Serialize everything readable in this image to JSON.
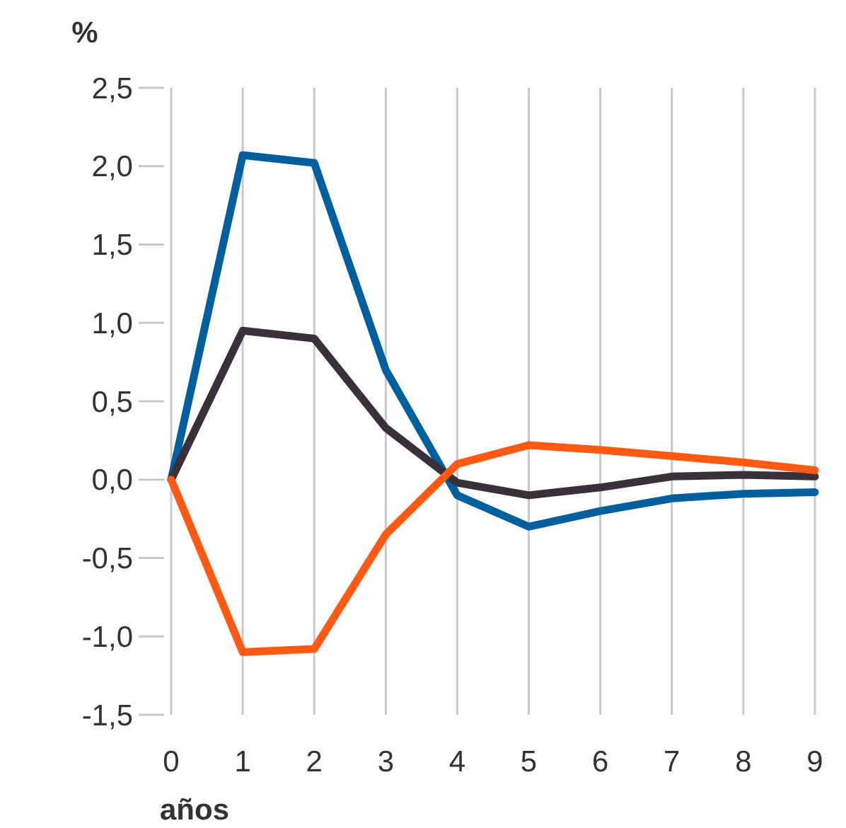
{
  "chart_data": {
    "type": "line",
    "ylabel": "%",
    "xlabel": "años",
    "x": [
      0,
      1,
      2,
      3,
      4,
      5,
      6,
      7,
      8,
      9
    ],
    "xlim": [
      0,
      9
    ],
    "xticks": [
      0,
      1,
      2,
      3,
      4,
      5,
      6,
      7,
      8,
      9
    ],
    "ylim": [
      -1.5,
      2.5
    ],
    "yticks": [
      {
        "value": -1.5,
        "label": "-1,5"
      },
      {
        "value": -1,
        "label": "-1,0"
      },
      {
        "value": -0.5,
        "label": "-0,5"
      },
      {
        "value": 0,
        "label": "0,0"
      },
      {
        "value": 0.5,
        "label": "0,5"
      },
      {
        "value": 1,
        "label": "1,0"
      },
      {
        "value": 1.5,
        "label": "1,5"
      },
      {
        "value": 2,
        "label": "2,0"
      },
      {
        "value": 2.5,
        "label": "2,5"
      }
    ],
    "grid": "x",
    "marker": "none",
    "line_style": "solid",
    "series": [
      {
        "color": "#00609e",
        "values": [
          0,
          2.07,
          2.02,
          0.7,
          -0.1,
          -0.3,
          -0.2,
          -0.12,
          -0.09,
          -0.08
        ]
      },
      {
        "color": "#3a2f3a",
        "values": [
          0,
          0.95,
          0.9,
          0.33,
          -0.02,
          -0.1,
          -0.05,
          0.02,
          0.03,
          0.02
        ]
      },
      {
        "color": "#ff5a14",
        "values": [
          0,
          -1.1,
          -1.08,
          -0.35,
          0.1,
          0.22,
          0.19,
          0.15,
          0.11,
          0.06
        ]
      }
    ]
  }
}
